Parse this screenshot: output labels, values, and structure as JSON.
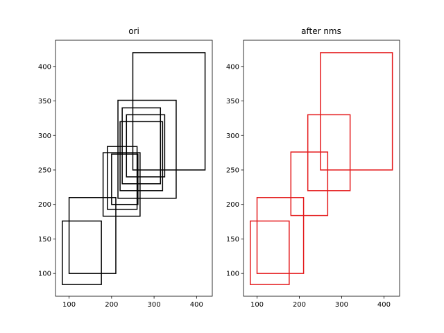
{
  "chart_data": [
    {
      "type": "boxes",
      "title": "ori",
      "xlim": [
        68,
        437
      ],
      "ylim": [
        67,
        438
      ],
      "xticks": [
        100,
        200,
        300,
        400
      ],
      "yticks": [
        100,
        150,
        200,
        250,
        300,
        350,
        400
      ],
      "box_color": "#000000",
      "boxes": [
        {
          "x1": 250,
          "y1": 250,
          "x2": 420,
          "y2": 420
        },
        {
          "x1": 220,
          "y1": 220,
          "x2": 320,
          "y2": 320
        },
        {
          "x1": 215,
          "y1": 209,
          "x2": 352,
          "y2": 351
        },
        {
          "x1": 225,
          "y1": 230,
          "x2": 315,
          "y2": 340
        },
        {
          "x1": 235,
          "y1": 240,
          "x2": 325,
          "y2": 330
        },
        {
          "x1": 180,
          "y1": 183,
          "x2": 267,
          "y2": 275
        },
        {
          "x1": 190,
          "y1": 193,
          "x2": 260,
          "y2": 284
        },
        {
          "x1": 200,
          "y1": 200,
          "x2": 262,
          "y2": 273
        },
        {
          "x1": 100,
          "y1": 100,
          "x2": 210,
          "y2": 210
        },
        {
          "x1": 84,
          "y1": 84,
          "x2": 176,
          "y2": 176
        }
      ]
    },
    {
      "type": "boxes",
      "title": "after nms",
      "xlim": [
        68,
        437
      ],
      "ylim": [
        67,
        438
      ],
      "xticks": [
        100,
        200,
        300,
        400
      ],
      "yticks": [
        100,
        150,
        200,
        250,
        300,
        350,
        400
      ],
      "box_color": "#e41a1c",
      "boxes": [
        {
          "x1": 250,
          "y1": 250,
          "x2": 420,
          "y2": 420
        },
        {
          "x1": 220,
          "y1": 220,
          "x2": 320,
          "y2": 330
        },
        {
          "x1": 180,
          "y1": 184,
          "x2": 267,
          "y2": 276
        },
        {
          "x1": 100,
          "y1": 100,
          "x2": 210,
          "y2": 210
        },
        {
          "x1": 84,
          "y1": 84,
          "x2": 176,
          "y2": 176
        }
      ]
    }
  ]
}
